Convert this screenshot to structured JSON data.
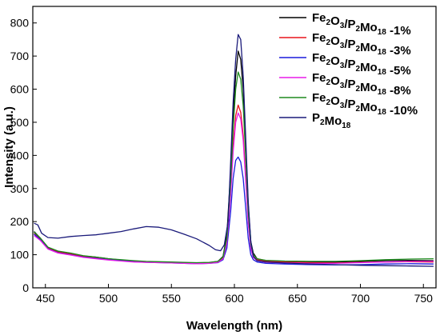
{
  "chart_data": {
    "type": "line",
    "xlabel": "Wavelength (nm)",
    "ylabel": "Intensity (a.u.)",
    "xlim": [
      440,
      760
    ],
    "ylim": [
      0,
      850
    ],
    "xticks": [
      450,
      500,
      550,
      600,
      650,
      700,
      750
    ],
    "yticks": [
      0,
      100,
      200,
      300,
      400,
      500,
      600,
      700,
      800
    ],
    "legend_position": "top-right",
    "grid": false,
    "series": [
      {
        "name": "Fe2O3/P2Mo18 -1%",
        "legend": {
          "base": "Fe",
          "s1": "2",
          "m1": "O",
          "s2": "3",
          "m2": "/P",
          "s3": "2",
          "m3": "Mo",
          "s4": "18",
          "suffix": " -1%"
        },
        "color": "#000000",
        "points": [
          [
            441,
            170
          ],
          [
            446,
            150
          ],
          [
            452,
            122
          ],
          [
            460,
            110
          ],
          [
            470,
            104
          ],
          [
            480,
            96
          ],
          [
            490,
            93
          ],
          [
            500,
            88
          ],
          [
            510,
            84
          ],
          [
            520,
            81
          ],
          [
            530,
            79
          ],
          [
            540,
            78
          ],
          [
            550,
            77
          ],
          [
            560,
            76
          ],
          [
            570,
            75
          ],
          [
            580,
            76
          ],
          [
            587,
            80
          ],
          [
            591,
            95
          ],
          [
            594,
            160
          ],
          [
            597,
            350
          ],
          [
            599,
            520
          ],
          [
            601,
            640
          ],
          [
            603,
            715
          ],
          [
            605,
            690
          ],
          [
            607,
            600
          ],
          [
            609,
            420
          ],
          [
            611,
            250
          ],
          [
            613,
            140
          ],
          [
            615,
            105
          ],
          [
            618,
            88
          ],
          [
            625,
            82
          ],
          [
            640,
            80
          ],
          [
            660,
            78
          ],
          [
            680,
            78
          ],
          [
            700,
            80
          ],
          [
            720,
            82
          ],
          [
            740,
            83
          ],
          [
            758,
            82
          ]
        ]
      },
      {
        "name": "Fe2O3/P2Mo18 -3%",
        "legend": {
          "base": "Fe",
          "s1": "2",
          "m1": "O",
          "s2": "3",
          "m2": "/P",
          "s3": "2",
          "m3": "Mo",
          "s4": "18",
          "suffix": " -3%"
        },
        "color": "#e8141c",
        "points": [
          [
            441,
            165
          ],
          [
            446,
            148
          ],
          [
            452,
            120
          ],
          [
            460,
            108
          ],
          [
            470,
            102
          ],
          [
            480,
            95
          ],
          [
            490,
            91
          ],
          [
            500,
            86
          ],
          [
            510,
            83
          ],
          [
            520,
            80
          ],
          [
            530,
            78
          ],
          [
            540,
            77
          ],
          [
            550,
            76
          ],
          [
            560,
            75
          ],
          [
            570,
            74
          ],
          [
            580,
            75
          ],
          [
            587,
            78
          ],
          [
            591,
            90
          ],
          [
            594,
            140
          ],
          [
            597,
            290
          ],
          [
            599,
            430
          ],
          [
            601,
            520
          ],
          [
            603,
            552
          ],
          [
            605,
            530
          ],
          [
            607,
            460
          ],
          [
            609,
            330
          ],
          [
            611,
            200
          ],
          [
            613,
            120
          ],
          [
            615,
            95
          ],
          [
            618,
            85
          ],
          [
            625,
            80
          ],
          [
            640,
            78
          ],
          [
            660,
            76
          ],
          [
            680,
            75
          ],
          [
            700,
            77
          ],
          [
            720,
            78
          ],
          [
            740,
            79
          ],
          [
            758,
            78
          ]
        ]
      },
      {
        "name": "Fe2O3/P2Mo18 -5%",
        "legend": {
          "base": "Fe",
          "s1": "2",
          "m1": "O",
          "s2": "3",
          "m2": "/P",
          "s3": "2",
          "m3": "Mo",
          "s4": "18",
          "suffix": " -5%"
        },
        "color": "#1a1adc",
        "points": [
          [
            441,
            162
          ],
          [
            446,
            145
          ],
          [
            452,
            118
          ],
          [
            460,
            106
          ],
          [
            470,
            100
          ],
          [
            480,
            93
          ],
          [
            490,
            89
          ],
          [
            500,
            85
          ],
          [
            510,
            82
          ],
          [
            520,
            79
          ],
          [
            530,
            77
          ],
          [
            540,
            76
          ],
          [
            550,
            75
          ],
          [
            560,
            74
          ],
          [
            570,
            73
          ],
          [
            580,
            74
          ],
          [
            587,
            76
          ],
          [
            591,
            85
          ],
          [
            594,
            120
          ],
          [
            597,
            230
          ],
          [
            599,
            330
          ],
          [
            601,
            385
          ],
          [
            603,
            395
          ],
          [
            605,
            380
          ],
          [
            607,
            330
          ],
          [
            609,
            240
          ],
          [
            611,
            150
          ],
          [
            613,
            100
          ],
          [
            615,
            85
          ],
          [
            618,
            78
          ],
          [
            625,
            74
          ],
          [
            640,
            72
          ],
          [
            660,
            70
          ],
          [
            680,
            69
          ],
          [
            700,
            70
          ],
          [
            720,
            72
          ],
          [
            740,
            73
          ],
          [
            758,
            72
          ]
        ]
      },
      {
        "name": "Fe2O3/P2Mo18 -8%",
        "legend": {
          "base": "Fe",
          "s1": "2",
          "m1": "O",
          "s2": "3",
          "m2": "/P",
          "s3": "2",
          "m3": "Mo",
          "s4": "18",
          "suffix": " -8%"
        },
        "color": "#e81ce8",
        "points": [
          [
            441,
            158
          ],
          [
            446,
            143
          ],
          [
            452,
            117
          ],
          [
            460,
            105
          ],
          [
            470,
            99
          ],
          [
            480,
            92
          ],
          [
            490,
            88
          ],
          [
            500,
            84
          ],
          [
            510,
            81
          ],
          [
            520,
            78
          ],
          [
            530,
            77
          ],
          [
            540,
            76
          ],
          [
            550,
            75
          ],
          [
            560,
            74
          ],
          [
            570,
            73
          ],
          [
            580,
            74
          ],
          [
            587,
            77
          ],
          [
            591,
            88
          ],
          [
            594,
            135
          ],
          [
            597,
            280
          ],
          [
            599,
            410
          ],
          [
            601,
            500
          ],
          [
            603,
            528
          ],
          [
            605,
            510
          ],
          [
            607,
            445
          ],
          [
            609,
            320
          ],
          [
            611,
            195
          ],
          [
            613,
            118
          ],
          [
            615,
            92
          ],
          [
            618,
            82
          ],
          [
            625,
            77
          ],
          [
            640,
            75
          ],
          [
            660,
            74
          ],
          [
            680,
            74
          ],
          [
            700,
            76
          ],
          [
            720,
            78
          ],
          [
            740,
            80
          ],
          [
            758,
            80
          ]
        ]
      },
      {
        "name": "Fe2O3/P2Mo18 -10%",
        "legend": {
          "base": "Fe",
          "s1": "2",
          "m1": "O",
          "s2": "3",
          "m2": "/P",
          "s3": "2",
          "m3": "Mo",
          "s4": "18",
          "suffix": " -10%"
        },
        "color": "#1f8a1f",
        "points": [
          [
            441,
            168
          ],
          [
            446,
            150
          ],
          [
            452,
            123
          ],
          [
            460,
            111
          ],
          [
            470,
            105
          ],
          [
            480,
            97
          ],
          [
            490,
            93
          ],
          [
            500,
            88
          ],
          [
            510,
            85
          ],
          [
            520,
            82
          ],
          [
            530,
            80
          ],
          [
            540,
            79
          ],
          [
            550,
            78
          ],
          [
            560,
            77
          ],
          [
            570,
            76
          ],
          [
            580,
            77
          ],
          [
            587,
            80
          ],
          [
            591,
            93
          ],
          [
            594,
            150
          ],
          [
            597,
            320
          ],
          [
            599,
            480
          ],
          [
            601,
            600
          ],
          [
            603,
            652
          ],
          [
            605,
            630
          ],
          [
            607,
            550
          ],
          [
            609,
            390
          ],
          [
            611,
            230
          ],
          [
            613,
            132
          ],
          [
            615,
            100
          ],
          [
            618,
            88
          ],
          [
            625,
            83
          ],
          [
            640,
            81
          ],
          [
            660,
            80
          ],
          [
            680,
            80
          ],
          [
            700,
            82
          ],
          [
            720,
            85
          ],
          [
            740,
            87
          ],
          [
            758,
            88
          ]
        ]
      },
      {
        "name": "P2Mo18",
        "legend": {
          "base": "P",
          "s1": "2",
          "m1": "Mo",
          "s2": "18",
          "m2": "",
          "s3": "",
          "m3": "",
          "s4": "",
          "suffix": ""
        },
        "color": "#1a1a7a",
        "points": [
          [
            441,
            195
          ],
          [
            444,
            190
          ],
          [
            447,
            165
          ],
          [
            452,
            152
          ],
          [
            460,
            150
          ],
          [
            470,
            155
          ],
          [
            480,
            158
          ],
          [
            490,
            160
          ],
          [
            500,
            165
          ],
          [
            510,
            170
          ],
          [
            520,
            178
          ],
          [
            530,
            185
          ],
          [
            540,
            183
          ],
          [
            550,
            175
          ],
          [
            560,
            162
          ],
          [
            570,
            148
          ],
          [
            580,
            128
          ],
          [
            585,
            115
          ],
          [
            589,
            112
          ],
          [
            592,
            130
          ],
          [
            595,
            200
          ],
          [
            597,
            380
          ],
          [
            599,
            560
          ],
          [
            601,
            690
          ],
          [
            603,
            765
          ],
          [
            605,
            750
          ],
          [
            607,
            640
          ],
          [
            609,
            450
          ],
          [
            611,
            260
          ],
          [
            613,
            140
          ],
          [
            615,
            95
          ],
          [
            618,
            82
          ],
          [
            625,
            78
          ],
          [
            640,
            75
          ],
          [
            660,
            72
          ],
          [
            680,
            70
          ],
          [
            700,
            68
          ],
          [
            720,
            67
          ],
          [
            740,
            66
          ],
          [
            758,
            65
          ]
        ]
      }
    ]
  }
}
